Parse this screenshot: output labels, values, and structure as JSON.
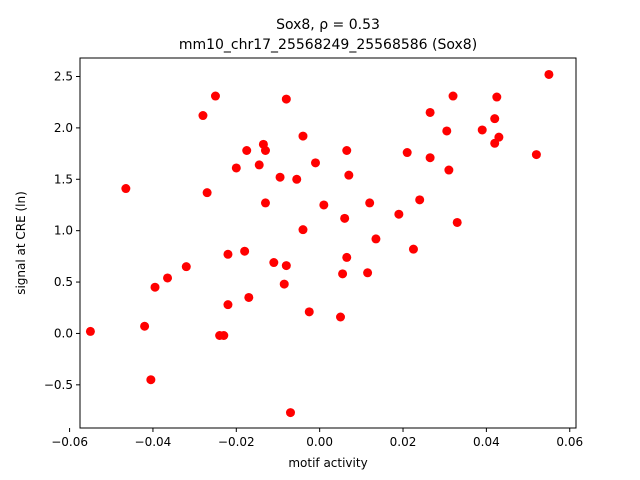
{
  "chart_data": {
    "type": "scatter",
    "title_line1": "Sox8, ρ = 0.53",
    "title_line2": "mm10_chr17_25568249_25568586 (Sox8)",
    "xlabel": "motif activity",
    "ylabel": "signal at CRE (ln)",
    "xlim": [
      -0.0575,
      0.0615
    ],
    "ylim": [
      -0.92,
      2.68
    ],
    "xticks": [
      -0.06,
      -0.04,
      -0.02,
      0.0,
      0.02,
      0.04,
      0.06
    ],
    "xtick_labels": [
      "−0.06",
      "−0.04",
      "−0.02",
      "0.00",
      "0.02",
      "0.04",
      "0.06"
    ],
    "yticks": [
      -0.5,
      0.0,
      0.5,
      1.0,
      1.5,
      2.0,
      2.5
    ],
    "ytick_labels": [
      "−0.5",
      "0.0",
      "0.5",
      "1.0",
      "1.5",
      "2.0",
      "2.5"
    ],
    "grid": false,
    "marker_color": "#ff0000",
    "points": [
      {
        "x": -0.055,
        "y": 0.02
      },
      {
        "x": -0.0465,
        "y": 1.41
      },
      {
        "x": -0.042,
        "y": 0.07
      },
      {
        "x": -0.0405,
        "y": -0.45
      },
      {
        "x": -0.0395,
        "y": 0.45
      },
      {
        "x": -0.0365,
        "y": 0.54
      },
      {
        "x": -0.032,
        "y": 0.65
      },
      {
        "x": -0.028,
        "y": 2.12
      },
      {
        "x": -0.027,
        "y": 1.37
      },
      {
        "x": -0.025,
        "y": 2.31
      },
      {
        "x": -0.024,
        "y": -0.02
      },
      {
        "x": -0.023,
        "y": -0.02
      },
      {
        "x": -0.022,
        "y": 0.28
      },
      {
        "x": -0.022,
        "y": 0.77
      },
      {
        "x": -0.02,
        "y": 1.61
      },
      {
        "x": -0.018,
        "y": 0.8
      },
      {
        "x": -0.0175,
        "y": 1.78
      },
      {
        "x": -0.017,
        "y": 0.35
      },
      {
        "x": -0.0145,
        "y": 1.64
      },
      {
        "x": -0.0135,
        "y": 1.84
      },
      {
        "x": -0.013,
        "y": 1.78
      },
      {
        "x": -0.013,
        "y": 1.27
      },
      {
        "x": -0.011,
        "y": 0.69
      },
      {
        "x": -0.0095,
        "y": 1.52
      },
      {
        "x": -0.0085,
        "y": 0.48
      },
      {
        "x": -0.008,
        "y": 2.28
      },
      {
        "x": -0.008,
        "y": 0.66
      },
      {
        "x": -0.007,
        "y": -0.77
      },
      {
        "x": -0.0055,
        "y": 1.5
      },
      {
        "x": -0.004,
        "y": 1.92
      },
      {
        "x": -0.004,
        "y": 1.01
      },
      {
        "x": -0.0025,
        "y": 0.21
      },
      {
        "x": -0.001,
        "y": 1.66
      },
      {
        "x": 0.001,
        "y": 1.25
      },
      {
        "x": 0.005,
        "y": 0.16
      },
      {
        "x": 0.0055,
        "y": 0.58
      },
      {
        "x": 0.006,
        "y": 1.12
      },
      {
        "x": 0.0065,
        "y": 0.74
      },
      {
        "x": 0.0065,
        "y": 1.78
      },
      {
        "x": 0.007,
        "y": 1.54
      },
      {
        "x": 0.0115,
        "y": 0.59
      },
      {
        "x": 0.012,
        "y": 1.27
      },
      {
        "x": 0.0135,
        "y": 0.92
      },
      {
        "x": 0.019,
        "y": 1.16
      },
      {
        "x": 0.021,
        "y": 1.76
      },
      {
        "x": 0.0225,
        "y": 0.82
      },
      {
        "x": 0.024,
        "y": 1.3
      },
      {
        "x": 0.0265,
        "y": 2.15
      },
      {
        "x": 0.0265,
        "y": 1.71
      },
      {
        "x": 0.0305,
        "y": 1.97
      },
      {
        "x": 0.031,
        "y": 1.59
      },
      {
        "x": 0.032,
        "y": 2.31
      },
      {
        "x": 0.033,
        "y": 1.08
      },
      {
        "x": 0.039,
        "y": 1.98
      },
      {
        "x": 0.042,
        "y": 2.09
      },
      {
        "x": 0.042,
        "y": 1.85
      },
      {
        "x": 0.0425,
        "y": 2.3
      },
      {
        "x": 0.043,
        "y": 1.91
      },
      {
        "x": 0.052,
        "y": 1.74
      },
      {
        "x": 0.055,
        "y": 2.52
      }
    ]
  }
}
